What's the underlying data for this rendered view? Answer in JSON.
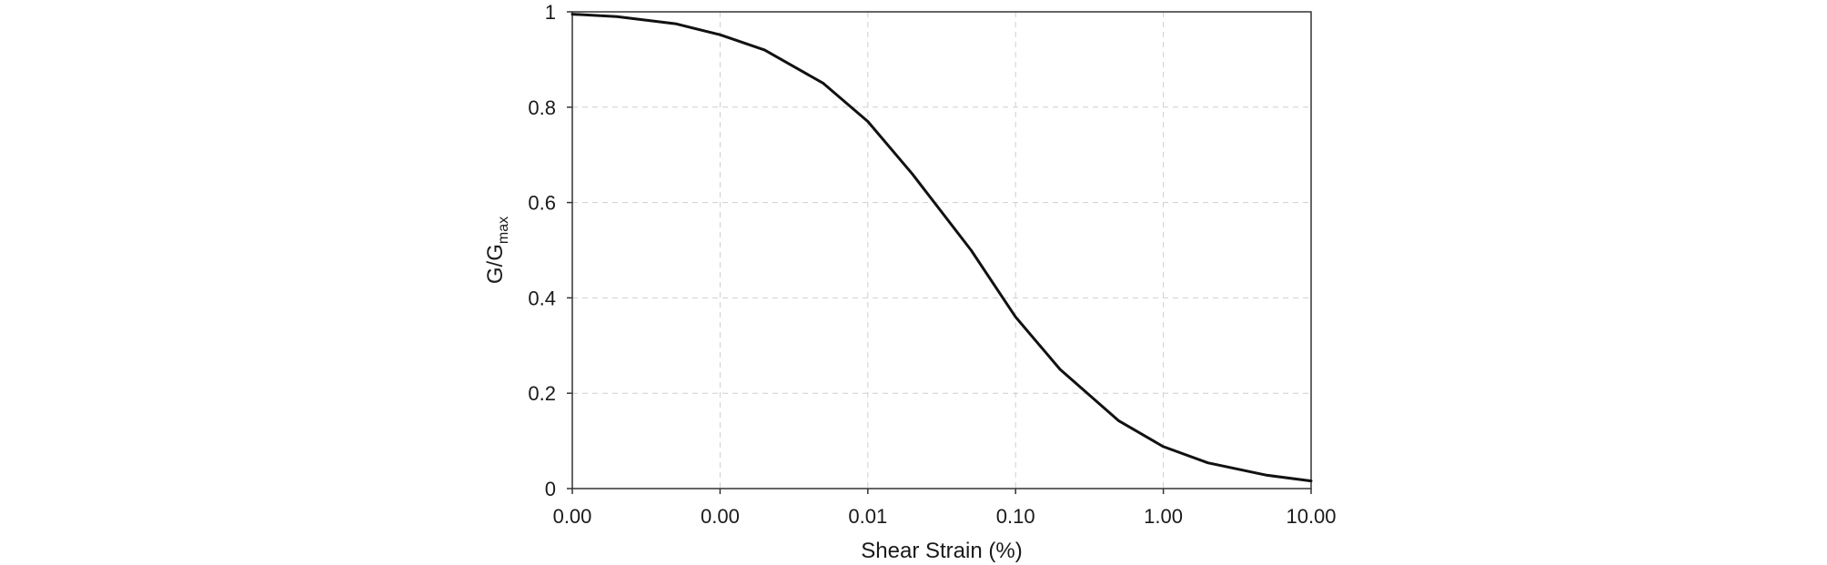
{
  "chart_data": {
    "type": "line",
    "xlabel": "Shear Strain (%)",
    "ylabel": {
      "main": "G/G",
      "subscript": "max"
    },
    "x_scale": "log",
    "xlim": [
      0.0001,
      10
    ],
    "ylim": [
      0,
      1
    ],
    "x_ticks": [
      {
        "value": 0.0001,
        "label": "0.00"
      },
      {
        "value": 0.001,
        "label": "0.00"
      },
      {
        "value": 0.01,
        "label": "0.01"
      },
      {
        "value": 0.1,
        "label": "0.10"
      },
      {
        "value": 1,
        "label": "1.00"
      },
      {
        "value": 10,
        "label": "10.00"
      }
    ],
    "y_ticks": [
      {
        "value": 0,
        "label": "0"
      },
      {
        "value": 0.2,
        "label": "0.2"
      },
      {
        "value": 0.4,
        "label": "0.4"
      },
      {
        "value": 0.6,
        "label": "0.6"
      },
      {
        "value": 0.8,
        "label": "0.8"
      },
      {
        "value": 1,
        "label": "1"
      }
    ],
    "grid": true,
    "series": [
      {
        "color": "#111111",
        "x": [
          0.0001,
          0.0002,
          0.0005,
          0.001,
          0.002,
          0.005,
          0.01,
          0.02,
          0.05,
          0.1,
          0.2,
          0.5,
          1,
          2,
          5,
          10
        ],
        "y": [
          0.995,
          0.99,
          0.975,
          0.952,
          0.92,
          0.85,
          0.77,
          0.66,
          0.5,
          0.36,
          0.25,
          0.142,
          0.088,
          0.054,
          0.028,
          0.016
        ]
      }
    ]
  }
}
